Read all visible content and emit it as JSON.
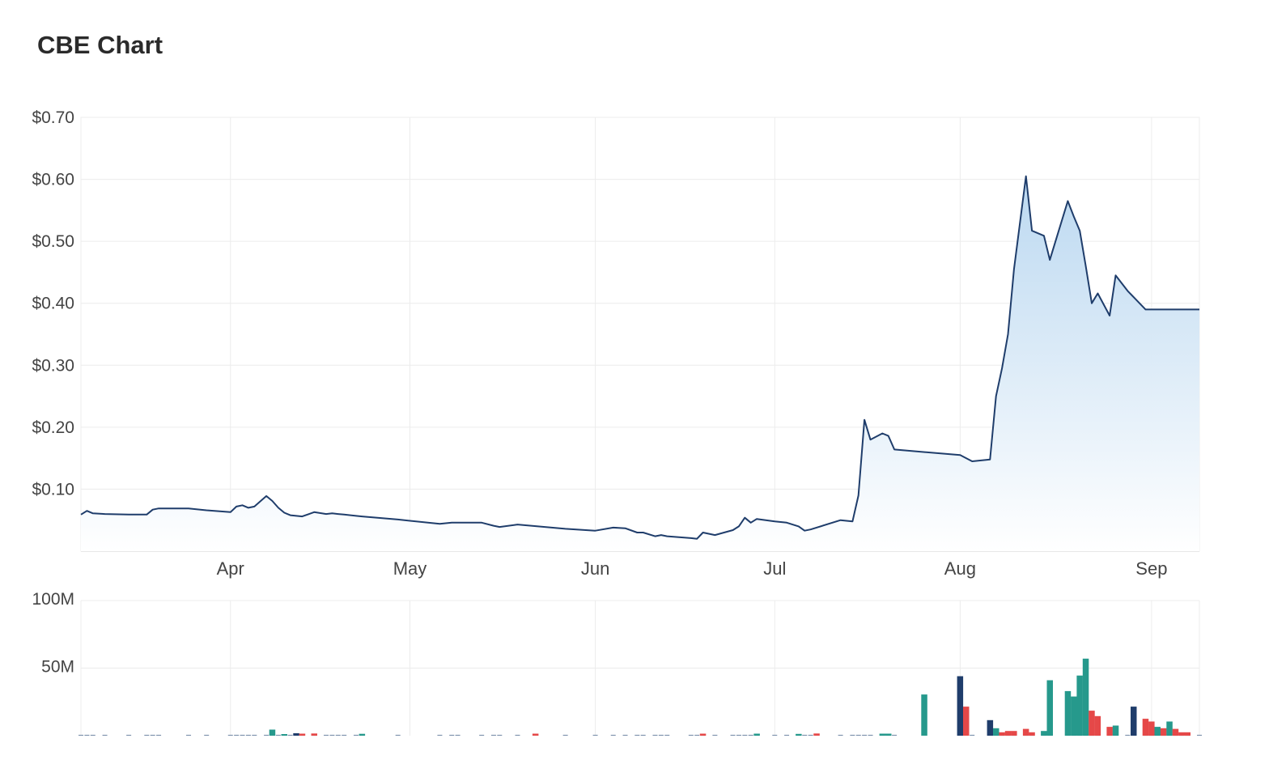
{
  "title": "CBE Chart",
  "colors": {
    "line": "#1f3d6b",
    "area_top": "#b9d7f0",
    "area_bottom": "#ffffff",
    "vol_up": "#26998c",
    "vol_down": "#e54848",
    "vol_flat": "#1f3d6b",
    "grid": "#ececec"
  },
  "chart_data": [
    {
      "type": "area",
      "name": "price",
      "y_tick_labels": [
        "$0.70",
        "$0.60",
        "$0.50",
        "$0.40",
        "$0.30",
        "$0.20",
        "$0.10"
      ],
      "y_tick_values": [
        0.7,
        0.6,
        0.5,
        0.4,
        0.3,
        0.2,
        0.1
      ],
      "x_tick_labels": [
        "Apr",
        "May",
        "Jun",
        "Jul",
        "Aug",
        "Sep"
      ],
      "x_tick_dates": [
        "2024-04-01",
        "2024-05-01",
        "2024-06-01",
        "2024-07-01",
        "2024-08-01",
        "2024-09-02"
      ],
      "x_range": [
        "2024-03-07",
        "2024-09-10"
      ],
      "ylim": [
        0,
        0.7
      ],
      "grid": true,
      "series": [
        {
          "x": [
            "2024-03-07",
            "2024-03-08",
            "2024-03-09",
            "2024-03-11",
            "2024-03-15",
            "2024-03-18",
            "2024-03-19",
            "2024-03-20",
            "2024-03-25",
            "2024-03-28",
            "2024-04-01",
            "2024-04-02",
            "2024-04-03",
            "2024-04-04",
            "2024-04-05",
            "2024-04-07",
            "2024-04-08",
            "2024-04-09",
            "2024-04-10",
            "2024-04-11",
            "2024-04-12",
            "2024-04-13",
            "2024-04-15",
            "2024-04-17",
            "2024-04-18",
            "2024-04-19",
            "2024-04-20",
            "2024-04-22",
            "2024-04-23",
            "2024-04-29",
            "2024-05-06",
            "2024-05-08",
            "2024-05-09",
            "2024-05-13",
            "2024-05-15",
            "2024-05-16",
            "2024-05-19",
            "2024-05-27",
            "2024-06-01",
            "2024-06-04",
            "2024-06-06",
            "2024-06-08",
            "2024-06-09",
            "2024-06-11",
            "2024-06-12",
            "2024-06-13",
            "2024-06-17",
            "2024-06-18",
            "2024-06-19",
            "2024-06-21",
            "2024-06-24",
            "2024-06-25",
            "2024-06-26",
            "2024-06-27",
            "2024-06-28",
            "2024-07-01",
            "2024-07-03",
            "2024-07-05",
            "2024-07-06",
            "2024-07-07",
            "2024-07-12",
            "2024-07-14",
            "2024-07-15",
            "2024-07-16",
            "2024-07-17",
            "2024-07-19",
            "2024-07-20",
            "2024-07-21",
            "2024-08-01",
            "2024-08-03",
            "2024-08-06",
            "2024-08-07",
            "2024-08-08",
            "2024-08-09",
            "2024-08-10",
            "2024-08-12",
            "2024-08-13",
            "2024-08-15",
            "2024-08-16",
            "2024-08-19",
            "2024-08-20",
            "2024-08-21",
            "2024-08-22",
            "2024-08-23",
            "2024-08-24",
            "2024-08-26",
            "2024-08-27",
            "2024-08-29",
            "2024-08-30",
            "2024-09-01",
            "2024-09-02",
            "2024-09-03",
            "2024-09-04",
            "2024-09-05",
            "2024-09-06",
            "2024-09-07",
            "2024-09-08",
            "2024-09-10"
          ],
          "y": [
            0.059,
            0.065,
            0.061,
            0.06,
            0.059,
            0.059,
            0.067,
            0.069,
            0.069,
            0.066,
            0.063,
            0.072,
            0.074,
            0.07,
            0.072,
            0.089,
            0.081,
            0.07,
            0.062,
            0.058,
            0.057,
            0.056,
            0.063,
            0.06,
            0.061,
            0.06,
            0.059,
            0.057,
            0.056,
            0.051,
            0.044,
            0.046,
            0.046,
            0.046,
            0.041,
            0.039,
            0.043,
            0.036,
            0.033,
            0.038,
            0.037,
            0.03,
            0.03,
            0.024,
            0.026,
            0.024,
            0.021,
            0.02,
            0.03,
            0.026,
            0.034,
            0.04,
            0.054,
            0.046,
            0.052,
            0.048,
            0.046,
            0.04,
            0.033,
            0.035,
            0.05,
            0.048,
            0.09,
            0.212,
            0.18,
            0.19,
            0.186,
            0.164,
            0.155,
            0.145,
            0.148,
            0.25,
            0.295,
            0.35,
            0.455,
            0.605,
            0.517,
            0.509,
            0.47,
            0.565,
            0.54,
            0.517,
            0.46,
            0.4,
            0.416,
            0.38,
            0.445,
            0.42,
            0.41,
            0.39,
            0.39,
            0.39,
            0.39,
            0.39,
            0.39,
            0.39,
            0.39,
            0.39
          ]
        }
      ]
    },
    {
      "type": "bar",
      "name": "volume",
      "y_tick_labels": [
        "100M",
        "50M"
      ],
      "y_tick_values": [
        100,
        50
      ],
      "y_unit": "M",
      "ylim": [
        0,
        100
      ],
      "grid": true,
      "bars": [
        {
          "x": "2024-04-08",
          "v": 4.5,
          "dir": "up"
        },
        {
          "x": "2024-04-10",
          "v": 1.2,
          "dir": "up"
        },
        {
          "x": "2024-04-12",
          "v": 1.8,
          "dir": "flat"
        },
        {
          "x": "2024-04-13",
          "v": 1.5,
          "dir": "down"
        },
        {
          "x": "2024-04-15",
          "v": 1.6,
          "dir": "down"
        },
        {
          "x": "2024-04-23",
          "v": 1.4,
          "dir": "up"
        },
        {
          "x": "2024-05-22",
          "v": 1.5,
          "dir": "down"
        },
        {
          "x": "2024-06-19",
          "v": 1.5,
          "dir": "down"
        },
        {
          "x": "2024-06-28",
          "v": 1.5,
          "dir": "up"
        },
        {
          "x": "2024-07-05",
          "v": 1.3,
          "dir": "up"
        },
        {
          "x": "2024-07-08",
          "v": 1.6,
          "dir": "down"
        },
        {
          "x": "2024-07-19",
          "v": 1.5,
          "dir": "up"
        },
        {
          "x": "2024-07-20",
          "v": 1.5,
          "dir": "up"
        },
        {
          "x": "2024-07-26",
          "v": 30.5,
          "dir": "up"
        },
        {
          "x": "2024-08-01",
          "v": 44.0,
          "dir": "flat"
        },
        {
          "x": "2024-08-02",
          "v": 21.5,
          "dir": "down"
        },
        {
          "x": "2024-08-06",
          "v": 11.5,
          "dir": "flat"
        },
        {
          "x": "2024-08-07",
          "v": 5.5,
          "dir": "up"
        },
        {
          "x": "2024-08-08",
          "v": 2.5,
          "dir": "down"
        },
        {
          "x": "2024-08-09",
          "v": 3.5,
          "dir": "down"
        },
        {
          "x": "2024-08-10",
          "v": 3.5,
          "dir": "down"
        },
        {
          "x": "2024-08-12",
          "v": 5.0,
          "dir": "down"
        },
        {
          "x": "2024-08-13",
          "v": 2.5,
          "dir": "down"
        },
        {
          "x": "2024-08-15",
          "v": 3.5,
          "dir": "up"
        },
        {
          "x": "2024-08-16",
          "v": 41.0,
          "dir": "up"
        },
        {
          "x": "2024-08-19",
          "v": 33.0,
          "dir": "up"
        },
        {
          "x": "2024-08-20",
          "v": 29.0,
          "dir": "up"
        },
        {
          "x": "2024-08-21",
          "v": 44.5,
          "dir": "up"
        },
        {
          "x": "2024-08-22",
          "v": 57.0,
          "dir": "up"
        },
        {
          "x": "2024-08-23",
          "v": 18.5,
          "dir": "down"
        },
        {
          "x": "2024-08-24",
          "v": 14.5,
          "dir": "down"
        },
        {
          "x": "2024-08-26",
          "v": 6.5,
          "dir": "down"
        },
        {
          "x": "2024-08-27",
          "v": 7.5,
          "dir": "up"
        },
        {
          "x": "2024-08-30",
          "v": 21.5,
          "dir": "flat"
        },
        {
          "x": "2024-09-01",
          "v": 12.5,
          "dir": "down"
        },
        {
          "x": "2024-09-02",
          "v": 10.5,
          "dir": "down"
        },
        {
          "x": "2024-09-03",
          "v": 6.5,
          "dir": "up"
        },
        {
          "x": "2024-09-04",
          "v": 5.5,
          "dir": "down"
        },
        {
          "x": "2024-09-05",
          "v": 10.5,
          "dir": "up"
        },
        {
          "x": "2024-09-06",
          "v": 5.0,
          "dir": "down"
        },
        {
          "x": "2024-09-07",
          "v": 2.5,
          "dir": "down"
        },
        {
          "x": "2024-09-08",
          "v": 2.5,
          "dir": "down"
        }
      ]
    }
  ]
}
